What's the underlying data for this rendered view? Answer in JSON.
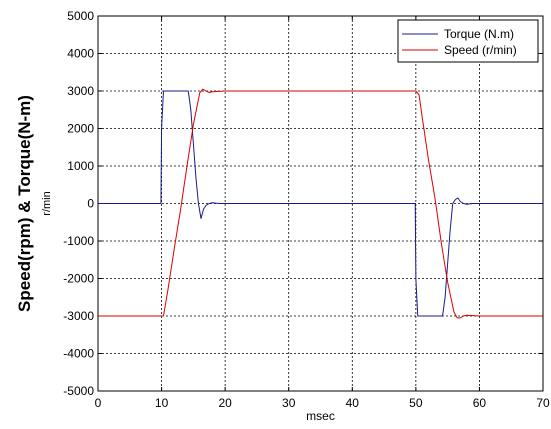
{
  "chart_data": {
    "type": "line",
    "xlabel": "msec",
    "ylabel": "Speed(rpm) & Torque(N-m)",
    "ylabel_secondary": "r/min",
    "xlim": [
      0,
      70
    ],
    "ylim": [
      -5000,
      5000
    ],
    "x_ticks": [
      0,
      10,
      20,
      30,
      40,
      50,
      60,
      70
    ],
    "y_ticks": [
      5000,
      4000,
      3000,
      2000,
      1000,
      0,
      -1000,
      -2000,
      -3000,
      -4000,
      -5000
    ],
    "x_tick_labels": [
      "0",
      "10",
      "20",
      "30",
      "40",
      "50",
      "60",
      "70"
    ],
    "y_tick_labels": [
      "5000",
      "4000",
      "3000",
      "2000",
      "1000",
      "0",
      "-1000",
      "-2000",
      "-3000",
      "-4000",
      "-5000"
    ],
    "grid": true,
    "legend_position": "top-right",
    "series": [
      {
        "name": "Torque (N.m)",
        "color": "#1a1a8c",
        "x": [
          0,
          9.9,
          10.0,
          10.3,
          14.2,
          14.6,
          15.0,
          15.4,
          15.8,
          16.2,
          16.6,
          17.0,
          17.5,
          18.0,
          19.0,
          20.0,
          30.0,
          40.0,
          49.9,
          50.0,
          50.3,
          54.2,
          54.6,
          55.0,
          55.4,
          55.8,
          56.2,
          56.6,
          57.0,
          57.5,
          58.0,
          59.0,
          60.0,
          70.0
        ],
        "y": [
          0,
          0,
          2000,
          3000,
          3000,
          2500,
          1600,
          700,
          0,
          -400,
          -150,
          -50,
          0,
          20,
          0,
          0,
          0,
          0,
          0,
          -2000,
          -3000,
          -3000,
          -2500,
          -1600,
          -700,
          0,
          100,
          150,
          50,
          0,
          -20,
          0,
          0,
          0
        ]
      },
      {
        "name": "Speed (r/min)",
        "color": "#e00000",
        "x": [
          0,
          10.3,
          11.0,
          12.0,
          13.0,
          14.0,
          15.0,
          16.0,
          16.5,
          17.0,
          17.5,
          18.0,
          19.0,
          20.0,
          30.0,
          40.0,
          50.0,
          50.5,
          51.0,
          52.0,
          53.0,
          54.0,
          55.0,
          56.0,
          56.5,
          57.0,
          57.5,
          58.0,
          59.0,
          60.0,
          70.0
        ],
        "y": [
          -3000,
          -3000,
          -2300,
          -1200,
          -150,
          1000,
          2100,
          2950,
          3050,
          3000,
          2960,
          2980,
          2990,
          3000,
          3000,
          3000,
          3000,
          2900,
          2300,
          1150,
          150,
          -1050,
          -2100,
          -2900,
          -3050,
          -3050,
          -3000,
          -2980,
          -2990,
          -3000,
          -3000
        ]
      }
    ]
  }
}
